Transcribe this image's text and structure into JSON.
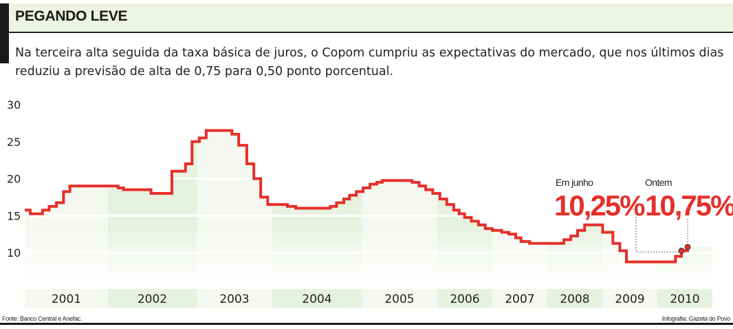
{
  "header": {
    "title": "PEGANDO LEVE",
    "subtitle": "Na terceira alta seguida da taxa básica de juros, o Copom cumpriu as expectativas do mercado, que nos últimos dias reduziu a previsão de alta de 0,75 para 0,50 ponto porcentual."
  },
  "footer": {
    "source": "Fonte: Banco Central e Anefac.",
    "credit": "Infografia: Gazeta do Povo"
  },
  "colors": {
    "line": "#e5302a",
    "band_light": "#f4f8f0",
    "band_dark": "#e7f1e0",
    "title_band": "#eef4e3"
  },
  "chart_data": {
    "type": "line",
    "step": true,
    "ylim": [
      5,
      30
    ],
    "yticks": [
      "30",
      "25",
      "20",
      "15",
      "10"
    ],
    "ytick_values": [
      30,
      25,
      20,
      15,
      10
    ],
    "grid": true,
    "categories": [
      "2001",
      "2002",
      "2003",
      "2004",
      "2005",
      "2006",
      "2007",
      "2008",
      "2009",
      "2010"
    ],
    "series": [
      {
        "points": [
          [
            "2001-01-01",
            15.75
          ],
          [
            "2001-01-25",
            15.25
          ],
          [
            "2001-03-20",
            15.75
          ],
          [
            "2001-04-18",
            16.25
          ],
          [
            "2001-05-20",
            16.75
          ],
          [
            "2001-06-20",
            18.25
          ],
          [
            "2001-07-18",
            19.0
          ],
          [
            "2002-02-12",
            18.75
          ],
          [
            "2002-03-06",
            18.5
          ],
          [
            "2002-06-27",
            18.0
          ],
          [
            "2002-09-21",
            21.0
          ],
          [
            "2002-11-16",
            22.0
          ],
          [
            "2002-12-13",
            25.0
          ],
          [
            "2003-01-14",
            25.5
          ],
          [
            "2003-02-16",
            26.5
          ],
          [
            "2003-06-20",
            26.0
          ],
          [
            "2003-07-23",
            24.5
          ],
          [
            "2003-08-31",
            22.0
          ],
          [
            "2003-10-04",
            20.0
          ],
          [
            "2003-11-06",
            17.5
          ],
          [
            "2003-12-10",
            16.5
          ],
          [
            "2004-03-03",
            16.25
          ],
          [
            "2004-04-06",
            16.0
          ],
          [
            "2004-08-25",
            16.25
          ],
          [
            "2004-09-20",
            16.75
          ],
          [
            "2004-10-20",
            17.25
          ],
          [
            "2004-11-12",
            17.75
          ],
          [
            "2004-12-10",
            18.25
          ],
          [
            "2005-01-08",
            18.75
          ],
          [
            "2005-02-10",
            19.25
          ],
          [
            "2005-03-15",
            19.5
          ],
          [
            "2005-04-10",
            19.75
          ],
          [
            "2005-09-01",
            19.5
          ],
          [
            "2005-10-05",
            19.0
          ],
          [
            "2005-11-06",
            18.5
          ],
          [
            "2005-12-10",
            18.0
          ],
          [
            "2006-01-18",
            17.25
          ],
          [
            "2006-03-05",
            16.5
          ],
          [
            "2006-04-20",
            15.75
          ],
          [
            "2006-05-26",
            15.25
          ],
          [
            "2006-07-01",
            14.75
          ],
          [
            "2006-08-15",
            14.25
          ],
          [
            "2006-10-01",
            13.75
          ],
          [
            "2006-11-15",
            13.25
          ],
          [
            "2007-01-01",
            13.0
          ],
          [
            "2007-03-05",
            12.75
          ],
          [
            "2007-04-20",
            12.5
          ],
          [
            "2007-06-05",
            12.0
          ],
          [
            "2007-07-10",
            11.5
          ],
          [
            "2007-09-05",
            11.25
          ],
          [
            "2008-04-20",
            11.75
          ],
          [
            "2008-06-05",
            12.25
          ],
          [
            "2008-07-20",
            13.0
          ],
          [
            "2008-09-05",
            13.75
          ],
          [
            "2009-01-03",
            12.75
          ],
          [
            "2009-03-12",
            11.25
          ],
          [
            "2009-04-27",
            10.25
          ],
          [
            "2009-06-10",
            8.75
          ],
          [
            "2010-05-01",
            9.5
          ],
          [
            "2010-06-10",
            10.25
          ],
          [
            "2010-07-21",
            10.75
          ]
        ]
      }
    ],
    "annotations": [
      {
        "label": "Em junho",
        "value_text": "10,25%",
        "date": "2010-06-10",
        "value": 10.25
      },
      {
        "label": "Ontem",
        "value_text": "10,75%",
        "date": "2010-07-21",
        "value": 10.75
      }
    ]
  }
}
